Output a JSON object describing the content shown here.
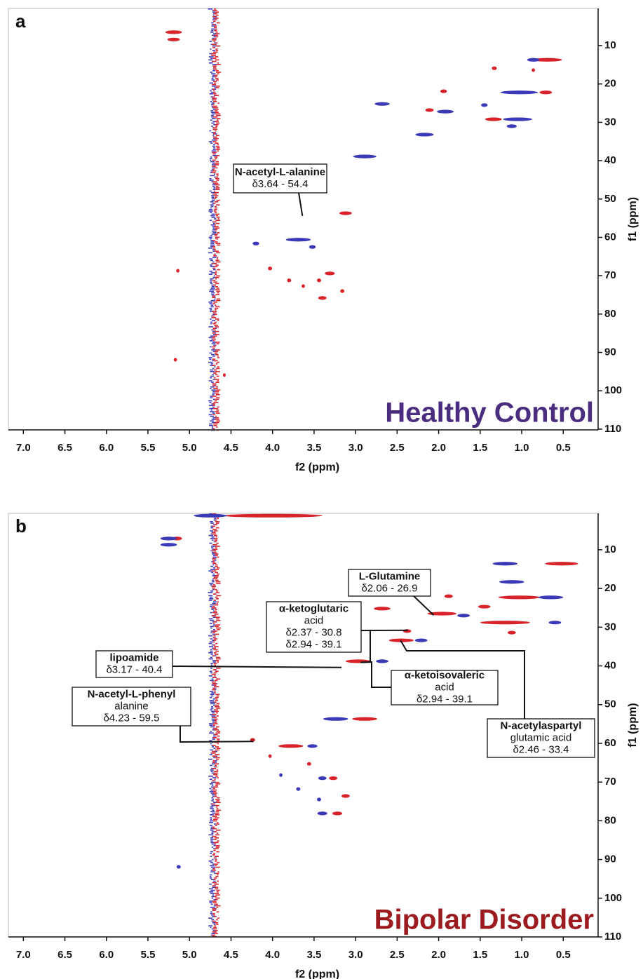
{
  "chart_data": [
    {
      "type": "scatter",
      "panel": "a",
      "title": "Healthy Control",
      "title_color": "#4b2d7f",
      "xlabel": "f2 (ppm)",
      "ylabel": "f1 (ppm)",
      "xlim": [
        7.18,
        0.08
      ],
      "ylim": [
        0.3,
        110.2
      ],
      "xticks": [
        {
          "value": 7,
          "label": "7.0"
        },
        6.5,
        {
          "value": 6,
          "label": "6.0"
        },
        5.5,
        {
          "value": 5,
          "label": "5.0"
        },
        4.5,
        {
          "value": 4,
          "label": "4.0"
        },
        3.5,
        {
          "value": 3,
          "label": "3.0"
        },
        2.5,
        {
          "value": 2,
          "label": "2.0"
        },
        1.5,
        {
          "value": 1,
          "label": "1.0"
        },
        0.5
      ],
      "yticks": [
        10,
        20,
        30,
        40,
        50,
        60,
        70,
        80,
        90,
        100,
        110
      ],
      "series": [
        {
          "color": "#d8232a",
          "x": [
            5.19,
            5.19,
            0.69,
            1.33,
            0.86,
            1.94,
            0.71,
            2.11,
            1.34,
            3.12,
            4.03,
            3.31,
            3.8,
            3.44,
            3.16,
            3.4,
            3.63,
            5.14,
            5.17,
            4.58
          ],
          "values": [
            6.5,
            8.4,
            13.7,
            15.9,
            16.4,
            21.9,
            22.2,
            26.8,
            29.2,
            53.7,
            68.1,
            69.4,
            71.2,
            71.2,
            74,
            75.8,
            72.7,
            68.7,
            91.9,
            95.9
          ],
          "sizes": [
            0.2,
            0.15,
            0.35,
            0.06,
            0.04,
            0.08,
            0.15,
            0.1,
            0.2,
            0.15,
            0.05,
            0.12,
            0.05,
            0.05,
            0.05,
            0.1,
            0.04,
            0.04,
            0.04,
            0.03
          ]
        },
        {
          "color": "#3a3ab8",
          "x": [
            0.86,
            1.03,
            2.68,
            1.92,
            1.45,
            1.05,
            1.12,
            2.17,
            2.89,
            4.2,
            3.69,
            3.52
          ],
          "values": [
            13.7,
            22.2,
            25.2,
            27.2,
            25.5,
            29.2,
            31,
            33.2,
            38.9,
            61.6,
            60.6,
            62.5
          ],
          "sizes": [
            0.15,
            0.45,
            0.18,
            0.2,
            0.08,
            0.35,
            0.12,
            0.22,
            0.28,
            0.08,
            0.3,
            0.08
          ]
        }
      ],
      "annotations": [
        {
          "lines": [
            "N-acetyl-L-alanine",
            "δ3.64 - 54.4"
          ],
          "x": [
            3.64
          ],
          "y": [
            54.4
          ]
        }
      ]
    },
    {
      "type": "scatter",
      "panel": "b",
      "title": "Bipolar Disorder",
      "title_color": "#9b1b1e",
      "xlabel": "f2 (ppm)",
      "ylabel": "f1 (ppm)",
      "xlim": [
        7.18,
        0.08
      ],
      "ylim": [
        0.6,
        110
      ],
      "xticks": [
        {
          "value": 7,
          "label": "7.0"
        },
        6.5,
        {
          "value": 6,
          "label": "6.0"
        },
        5.5,
        {
          "value": 5,
          "label": "5.0"
        },
        4.5,
        {
          "value": 4,
          "label": "4.0"
        },
        3.5,
        {
          "value": 3,
          "label": "3.0"
        },
        2.5,
        {
          "value": 2,
          "label": "2.0"
        },
        1.5,
        {
          "value": 1,
          "label": "1.0"
        },
        0.5
      ],
      "yticks": [
        10,
        20,
        30,
        40,
        50,
        60,
        70,
        80,
        90,
        100,
        110
      ],
      "series": [
        {
          "color": "#d8232a",
          "x": [
            4.0,
            5.15,
            0.52,
            1.03,
            1.88,
            1.45,
            2.68,
            1.96,
            1.2,
            1.12,
            2.38,
            2.45,
            2.97,
            2.89,
            4.24,
            3.78,
            3.56,
            3.27,
            4.03,
            3.12,
            3.22
          ],
          "values": [
            1.2,
            7.1,
            13.6,
            22.3,
            22,
            24.7,
            25.2,
            26.5,
            28.8,
            31.4,
            31,
            33.4,
            38.8,
            53.7,
            59.1,
            60.7,
            65.3,
            69,
            63.3,
            73.6,
            78.1
          ],
          "sizes": [
            1.2,
            0.12,
            0.4,
            0.5,
            0.1,
            0.15,
            0.2,
            0.35,
            0.6,
            0.1,
            0.1,
            0.3,
            0.3,
            0.3,
            0.06,
            0.3,
            0.05,
            0.1,
            0.04,
            0.1,
            0.12
          ]
        },
        {
          "color": "#3a3ab8",
          "x": [
            4.75,
            5.25,
            5.25,
            1.2,
            1.12,
            0.65,
            1.7,
            0.6,
            2.21,
            2.68,
            3.24,
            3.52,
            3.4,
            3.9,
            3.69,
            3.44,
            3.4,
            5.13
          ],
          "values": [
            1.2,
            7.1,
            8.7,
            13.6,
            18.3,
            22.3,
            27,
            28.8,
            33.4,
            38.8,
            53.7,
            60.7,
            69,
            68.2,
            71.8,
            74.5,
            78.1,
            91.9
          ],
          "sizes": [
            0.4,
            0.2,
            0.2,
            0.3,
            0.3,
            0.3,
            0.15,
            0.15,
            0.15,
            0.15,
            0.3,
            0.12,
            0.1,
            0.04,
            0.05,
            0.05,
            0.12,
            0.05
          ]
        }
      ],
      "annotations": [
        {
          "lines": [
            "L-Glutamine",
            "δ2.06 - 26.9"
          ],
          "x": [
            2.06
          ],
          "y": [
            26.9
          ]
        },
        {
          "lines": [
            "α-ketoglutaric",
            "acid",
            "δ2.37 - 30.8",
            "δ2.94 - 39.1"
          ],
          "x": [
            2.37,
            2.94
          ],
          "y": [
            30.8,
            39.1
          ]
        },
        {
          "lines": [
            "lipoamide",
            "δ3.17 - 40.4"
          ],
          "x": [
            3.17
          ],
          "y": [
            40.4
          ]
        },
        {
          "lines": [
            "N-acetyl-L-phenyl",
            "alanine",
            "δ4.23 - 59.5"
          ],
          "x": [
            4.23
          ],
          "y": [
            59.5
          ]
        },
        {
          "lines": [
            "α-ketoisovaleric",
            "acid",
            "δ2.94 - 39.1"
          ],
          "x": [
            2.94
          ],
          "y": [
            39.1
          ]
        },
        {
          "lines": [
            "N-acetylaspartyl",
            "glutamic acid",
            "δ2.46 - 33.4"
          ],
          "x": [
            2.46
          ],
          "y": [
            33.4
          ]
        }
      ]
    }
  ]
}
